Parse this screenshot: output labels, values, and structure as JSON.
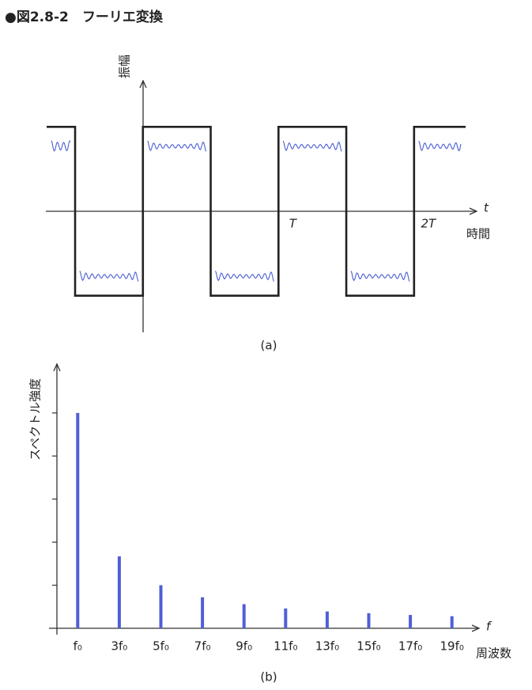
{
  "title": "●図2.8-2　フーリエ変換",
  "chart_data": [
    {
      "type": "line",
      "y_label": "振幅",
      "x_label": "t",
      "x_label_2": "時間",
      "caption": "(a)",
      "x": [
        -0.71,
        -0.5,
        -0.5,
        0,
        0,
        0.5,
        0.5,
        1,
        1,
        1.5,
        1.5,
        2,
        2,
        2.38
      ],
      "values": [
        1,
        1,
        -1,
        -1,
        1,
        1,
        -1,
        -1,
        1,
        1,
        -1,
        -1,
        1,
        1
      ],
      "color": "#222222",
      "xlim": [
        -0.71,
        2.38
      ],
      "ylim": [
        -1.5,
        1.5
      ],
      "xticks": [
        {
          "value": 1,
          "label": "T"
        },
        {
          "value": 2,
          "label": "2T"
        }
      ]
    },
    {
      "type": "bar",
      "y_label": "スペクトル強度",
      "x_label": "f",
      "x_label_2": "周波数",
      "caption": "(b)",
      "categories": [
        "f₀",
        "3f₀",
        "5f₀",
        "7f₀",
        "9f₀",
        "11f₀",
        "13f₀",
        "15f₀",
        "17f₀",
        "19f₀"
      ],
      "values": [
        5,
        1.67,
        1,
        0.72,
        0.56,
        0.46,
        0.39,
        0.35,
        0.31,
        0.28
      ],
      "color": "#4f5fd6",
      "ylim": [
        0,
        6.1
      ],
      "yticks": [
        1,
        2,
        3,
        4,
        5
      ]
    }
  ]
}
